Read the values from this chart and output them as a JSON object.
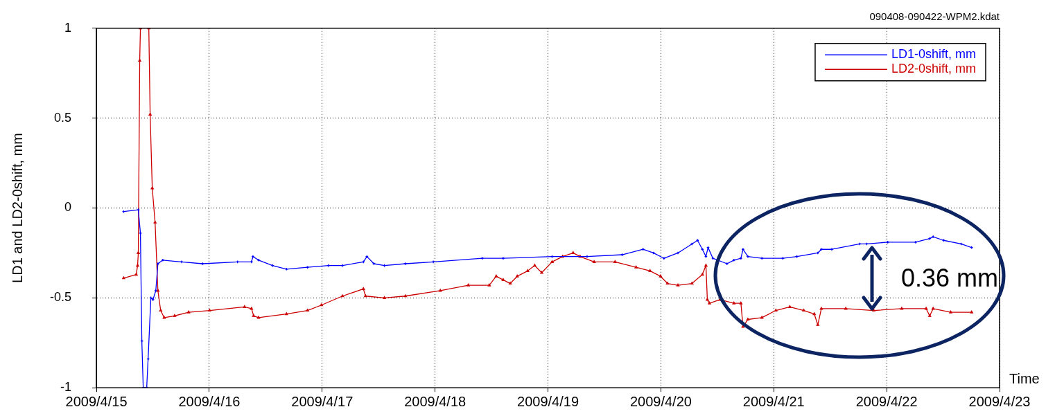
{
  "chart_data": {
    "type": "line",
    "title": "090408-090422-WPM2.kdat",
    "xlabel": "Time",
    "ylabel": "LD1 and LD2-0shift, mm",
    "xlim": [
      "2009-04-15",
      "2009-04-23"
    ],
    "xticks": [
      {
        "value": "2009-04-15",
        "label": "2009/4/15"
      },
      {
        "value": "2009-04-16",
        "label": "2009/4/16"
      },
      {
        "value": "2009-04-17",
        "label": "2009/4/17"
      },
      {
        "value": "2009-04-18",
        "label": "2009/4/18"
      },
      {
        "value": "2009-04-19",
        "label": "2009/4/19"
      },
      {
        "value": "2009-04-20",
        "label": "2009/4/20"
      },
      {
        "value": "2009-04-21",
        "label": "2009/4/21"
      },
      {
        "value": "2009-04-22",
        "label": "2009/4/22"
      },
      {
        "value": "2009-04-23",
        "label": "2009/4/23"
      }
    ],
    "ylim": [
      -1,
      1
    ],
    "yticks": [
      -1,
      -0.5,
      0,
      0.5,
      1
    ],
    "grid": true,
    "legend": "top right",
    "annotations": [
      "0.36 mm"
    ],
    "series": [
      {
        "name": "LD1-0shift, mm",
        "color": "#0000ff",
        "marker": "cross",
        "x": [
          "2009-04-15T05:48",
          "2009-04-15T08:55",
          "2009-04-15T09:22",
          "2009-04-15T09:40",
          "2009-04-15T09:58",
          "2009-04-15T10:42",
          "2009-04-15T11:00",
          "2009-04-15T11:35",
          "2009-04-15T12:02",
          "2009-04-15T12:38",
          "2009-04-15T13:05",
          "2009-04-15T14:07",
          "2009-04-15T18:08",
          "2009-04-15T22:35",
          "2009-04-16T06:01",
          "2009-04-16T08:59",
          "2009-04-16T09:17",
          "2009-04-16T10:29",
          "2009-04-16T13:27",
          "2009-04-16T16:25",
          "2009-04-16T20:53",
          "2009-04-17T01:20",
          "2009-04-17T04:19",
          "2009-04-17T08:46",
          "2009-04-17T09:31",
          "2009-04-17T11:00",
          "2009-04-17T13:14",
          "2009-04-17T17:41",
          "2009-04-17T23:38",
          "2009-04-18T10:02",
          "2009-04-18T14:29",
          "2009-04-19T00:53",
          "2009-04-19T08:19",
          "2009-04-19T15:46",
          "2009-04-19T20:13",
          "2009-04-19T22:26",
          "2009-04-20T00:40",
          "2009-04-20T03:38",
          "2009-04-20T06:37",
          "2009-04-20T07:48",
          "2009-04-20T08:50",
          "2009-04-20T09:35",
          "2009-04-20T10:02",
          "2009-04-20T11:04",
          "2009-04-20T14:03",
          "2009-04-20T15:32",
          "2009-04-20T17:01",
          "2009-04-20T17:28",
          "2009-04-20T18:30",
          "2009-04-20T21:29",
          "2009-04-21T01:56",
          "2009-04-21T04:55",
          "2009-04-21T09:22",
          "2009-04-21T10:07",
          "2009-04-21T12:20",
          "2009-04-21T18:17",
          "2009-04-21T19:46",
          "2009-04-22T00:14",
          "2009-04-22T06:10",
          "2009-04-22T09:09",
          "2009-04-22T09:53",
          "2009-04-22T12:07",
          "2009-04-22T15:50",
          "2009-04-22T18:04"
        ],
        "values": [
          -0.02,
          -0.01,
          -0.14,
          -0.74,
          -1,
          -1,
          -0.84,
          -0.5,
          -0.51,
          -0.46,
          -0.31,
          -0.29,
          -0.3,
          -0.31,
          -0.3,
          -0.3,
          -0.27,
          -0.29,
          -0.32,
          -0.34,
          -0.33,
          -0.32,
          -0.32,
          -0.3,
          -0.27,
          -0.31,
          -0.32,
          -0.31,
          -0.3,
          -0.28,
          -0.28,
          -0.27,
          -0.27,
          -0.26,
          -0.23,
          -0.25,
          -0.28,
          -0.25,
          -0.2,
          -0.18,
          -0.23,
          -0.27,
          -0.22,
          -0.28,
          -0.31,
          -0.29,
          -0.28,
          -0.23,
          -0.27,
          -0.28,
          -0.28,
          -0.27,
          -0.25,
          -0.23,
          -0.23,
          -0.2,
          -0.2,
          -0.19,
          -0.19,
          -0.17,
          -0.16,
          -0.18,
          -0.2,
          -0.22
        ]
      },
      {
        "name": "LD2-0shift, mm",
        "color": "#cc0000",
        "marker": "triangle",
        "x": [
          "2009-04-15T05:48",
          "2009-04-15T08:28",
          "2009-04-15T08:46",
          "2009-04-15T08:55",
          "2009-04-15T09:13",
          "2009-04-15T09:22",
          "2009-04-15T10:15",
          "2009-04-15T11:09",
          "2009-04-15T11:26",
          "2009-04-15T11:53",
          "2009-04-15T12:29",
          "2009-04-15T13:05",
          "2009-04-15T13:40",
          "2009-04-15T14:25",
          "2009-04-15T16:38",
          "2009-04-15T19:37",
          "2009-04-16T00:04",
          "2009-04-16T07:30",
          "2009-04-16T08:59",
          "2009-04-16T09:26",
          "2009-04-16T10:29",
          "2009-04-16T16:25",
          "2009-04-16T20:53",
          "2009-04-16T23:51",
          "2009-04-17T04:19",
          "2009-04-17T08:46",
          "2009-04-17T09:13",
          "2009-04-17T13:14",
          "2009-04-17T17:41",
          "2009-04-18T01:07",
          "2009-04-18T07:04",
          "2009-04-18T11:31",
          "2009-04-18T13:00",
          "2009-04-18T14:29",
          "2009-04-18T15:59",
          "2009-04-18T17:28",
          "2009-04-18T19:41",
          "2009-04-18T21:11",
          "2009-04-18T22:40",
          "2009-04-19T00:53",
          "2009-04-19T03:07",
          "2009-04-19T05:21",
          "2009-04-19T06:50",
          "2009-04-19T09:49",
          "2009-04-19T14:16",
          "2009-04-19T18:44",
          "2009-04-19T21:42",
          "2009-04-19T23:56",
          "2009-04-20T01:25",
          "2009-04-20T03:38",
          "2009-04-20T06:37",
          "2009-04-20T08:50",
          "2009-04-20T09:35",
          "2009-04-20T09:53",
          "2009-04-20T10:20",
          "2009-04-20T12:34",
          "2009-04-20T15:32",
          "2009-04-20T17:01",
          "2009-04-20T17:28",
          "2009-04-20T18:30",
          "2009-04-20T21:29",
          "2009-04-21T00:27",
          "2009-04-21T03:25",
          "2009-04-21T06:23",
          "2009-04-21T08:37",
          "2009-04-21T09:22",
          "2009-04-21T10:07",
          "2009-04-21T15:19",
          "2009-04-21T21:15",
          "2009-04-22T03:12",
          "2009-04-22T08:24",
          "2009-04-22T09:09",
          "2009-04-22T09:53",
          "2009-04-22T13:37",
          "2009-04-22T18:04"
        ],
        "values": [
          -0.39,
          -0.37,
          -0.32,
          -0.25,
          0.82,
          1,
          null,
          1,
          0.52,
          0.11,
          -0.08,
          -0.46,
          -0.57,
          -0.61,
          -0.6,
          -0.58,
          -0.57,
          -0.55,
          -0.56,
          -0.6,
          -0.61,
          -0.59,
          -0.57,
          -0.54,
          -0.49,
          -0.45,
          -0.49,
          -0.5,
          -0.49,
          -0.46,
          -0.43,
          -0.43,
          -0.38,
          -0.4,
          -0.42,
          -0.38,
          -0.35,
          -0.32,
          -0.36,
          -0.3,
          -0.27,
          -0.25,
          -0.27,
          -0.3,
          -0.3,
          -0.33,
          -0.35,
          -0.38,
          -0.42,
          -0.43,
          -0.42,
          -0.37,
          -0.32,
          -0.51,
          -0.53,
          -0.51,
          -0.53,
          -0.53,
          -0.66,
          -0.62,
          -0.61,
          -0.57,
          -0.55,
          -0.57,
          -0.59,
          -0.65,
          -0.56,
          -0.56,
          -0.57,
          -0.56,
          -0.56,
          -0.6,
          -0.56,
          -0.58,
          -0.58
        ]
      }
    ]
  }
}
